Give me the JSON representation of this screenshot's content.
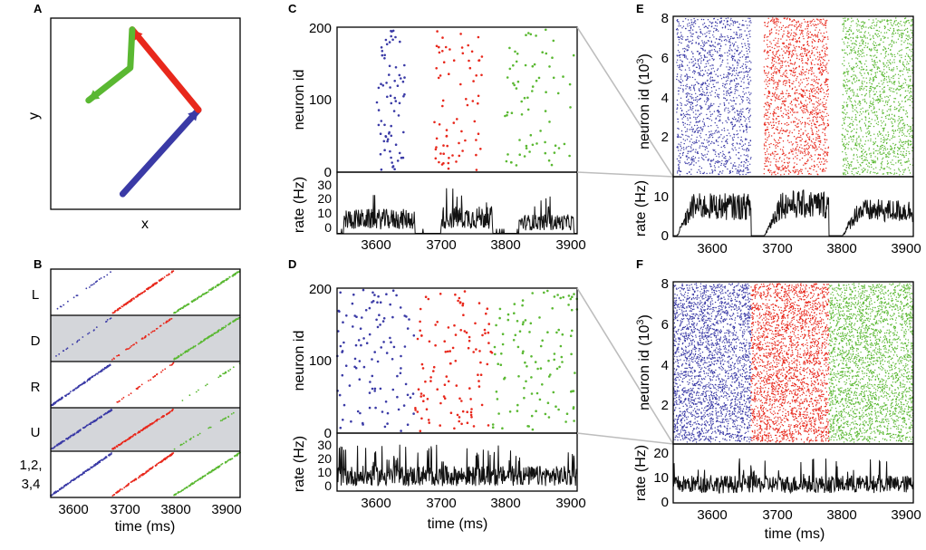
{
  "colors": {
    "blue": "#3a3aa6",
    "red": "#e8281c",
    "green": "#5ab832",
    "gray_band": "#d4d6da",
    "trace": "#111111",
    "zoom_line": "#bdbdbd"
  },
  "panels": {
    "A": {
      "letter": "A",
      "xlabel": "x",
      "ylabel": "y"
    },
    "B": {
      "letter": "B",
      "row_labels": [
        "L",
        "D",
        "R",
        "U"
      ],
      "last_row_label_line1": "1,2,",
      "last_row_label_line2": "3,4",
      "xticks": [
        "3600",
        "3700",
        "3800",
        "3900"
      ],
      "xlabel": "time (ms)"
    },
    "C": {
      "letter": "C",
      "ylabel_top": "neuron id",
      "ylabel_bottom": "rate (Hz)",
      "yticks_top": [
        "0",
        "100",
        "200"
      ],
      "yticks_bottom": [
        "0",
        "10",
        "20",
        "30"
      ],
      "xticks": [
        "3600",
        "3700",
        "3800",
        "3900"
      ]
    },
    "D": {
      "letter": "D",
      "ylabel_top": "neuron id",
      "ylabel_bottom": "rate (Hz)",
      "yticks_top": [
        "0",
        "100",
        "200"
      ],
      "yticks_bottom": [
        "0",
        "10",
        "20",
        "30"
      ],
      "xticks": [
        "3600",
        "3700",
        "3800",
        "3900"
      ],
      "xlabel": "time (ms)"
    },
    "E": {
      "letter": "E",
      "ylabel_top": "neuron id (10",
      "ylabel_top_sup": "3",
      "ylabel_top_end": ")",
      "ylabel_bottom": "rate (Hz)",
      "yticks_top": [
        "2",
        "4",
        "6",
        "8"
      ],
      "yticks_bottom": [
        "0",
        "10"
      ],
      "xticks": [
        "3600",
        "3700",
        "3800",
        "3900"
      ]
    },
    "F": {
      "letter": "F",
      "ylabel_top": "neuron id (10",
      "ylabel_top_sup": "3",
      "ylabel_top_end": ")",
      "ylabel_bottom": "rate (Hz)",
      "yticks_top": [
        "2",
        "4",
        "6",
        "8"
      ],
      "yticks_bottom": [
        "0",
        "10",
        "20"
      ],
      "xticks": [
        "3600",
        "3700",
        "3800",
        "3900"
      ],
      "xlabel": "time (ms)"
    }
  },
  "chart_data": [
    {
      "panel": "A",
      "type": "line",
      "title": "",
      "xlabel": "x",
      "ylabel": "y",
      "series": [
        {
          "name": "blue path",
          "color": "blue",
          "points": [
            [
              0.38,
              0.08
            ],
            [
              0.78,
              0.52
            ]
          ]
        },
        {
          "name": "red path",
          "color": "red",
          "points": [
            [
              0.78,
              0.52
            ],
            [
              0.43,
              0.94
            ]
          ]
        },
        {
          "name": "green path",
          "color": "green",
          "points": [
            [
              0.43,
              0.94
            ],
            [
              0.42,
              0.74
            ],
            [
              0.2,
              0.57
            ]
          ]
        }
      ]
    },
    {
      "panel": "B",
      "type": "scatter",
      "xlabel": "time (ms)",
      "xlim": [
        3540,
        3910
      ],
      "rows": [
        "L",
        "D",
        "R",
        "U",
        "1,2,3,4"
      ],
      "epochs": [
        {
          "color": "blue",
          "t_start": 3540,
          "t_end": 3660
        },
        {
          "color": "red",
          "t_start": 3660,
          "t_end": 3780
        },
        {
          "color": "green",
          "t_start": 3780,
          "t_end": 3910
        }
      ]
    },
    {
      "panel": "C",
      "type": "scatter",
      "xlim": [
        3540,
        3910
      ],
      "ylim_raster": [
        0,
        200
      ],
      "ylim_rate": [
        0,
        38
      ],
      "xlabel": "",
      "ylabel_raster": "neuron id",
      "ylabel_rate": "rate (Hz)",
      "raster_epochs": [
        {
          "color": "blue",
          "t_start": 3600,
          "t_end": 3645
        },
        {
          "color": "red",
          "t_start": 3690,
          "t_end": 3765
        },
        {
          "color": "green",
          "t_start": 3795,
          "t_end": 3905
        }
      ],
      "rate_bursts": [
        [
          3550,
          3660,
          9
        ],
        [
          3700,
          3780,
          10
        ],
        [
          3820,
          3905,
          7
        ]
      ]
    },
    {
      "panel": "D",
      "type": "scatter",
      "xlim": [
        3540,
        3910
      ],
      "ylim_raster": [
        0,
        200
      ],
      "ylim_rate": [
        0,
        38
      ],
      "xlabel": "time (ms)",
      "ylabel_raster": "neuron id",
      "ylabel_rate": "rate (Hz)",
      "raster_epochs": [
        {
          "color": "blue",
          "t_start": 3540,
          "t_end": 3660
        },
        {
          "color": "red",
          "t_start": 3660,
          "t_end": 3780
        },
        {
          "color": "green",
          "t_start": 3780,
          "t_end": 3910
        }
      ],
      "rate_mean": 11
    },
    {
      "panel": "E",
      "type": "scatter",
      "xlim": [
        3540,
        3910
      ],
      "ylim_raster": [
        0,
        8
      ],
      "ylim_rate": [
        0,
        14
      ],
      "xlabel": "",
      "ylabel_raster": "neuron id (10^3)",
      "ylabel_rate": "rate (Hz)",
      "raster_epochs": [
        {
          "color": "blue",
          "t_start": 3545,
          "t_end": 3660
        },
        {
          "color": "red",
          "t_start": 3680,
          "t_end": 3780
        },
        {
          "color": "green",
          "t_start": 3800,
          "t_end": 3910
        }
      ],
      "rate_bursts": [
        [
          3545,
          3660,
          7
        ],
        [
          3680,
          3780,
          7.5
        ],
        [
          3800,
          3910,
          6
        ]
      ]
    },
    {
      "panel": "F",
      "type": "scatter",
      "xlim": [
        3540,
        3910
      ],
      "ylim_raster": [
        0,
        8
      ],
      "ylim_rate": [
        0,
        24
      ],
      "xlabel": "time (ms)",
      "ylabel_raster": "neuron id (10^3)",
      "ylabel_rate": "rate (Hz)",
      "raster_epochs": [
        {
          "color": "blue",
          "t_start": 3540,
          "t_end": 3660
        },
        {
          "color": "red",
          "t_start": 3660,
          "t_end": 3780
        },
        {
          "color": "green",
          "t_start": 3780,
          "t_end": 3910
        }
      ],
      "rate_mean": 8
    }
  ]
}
